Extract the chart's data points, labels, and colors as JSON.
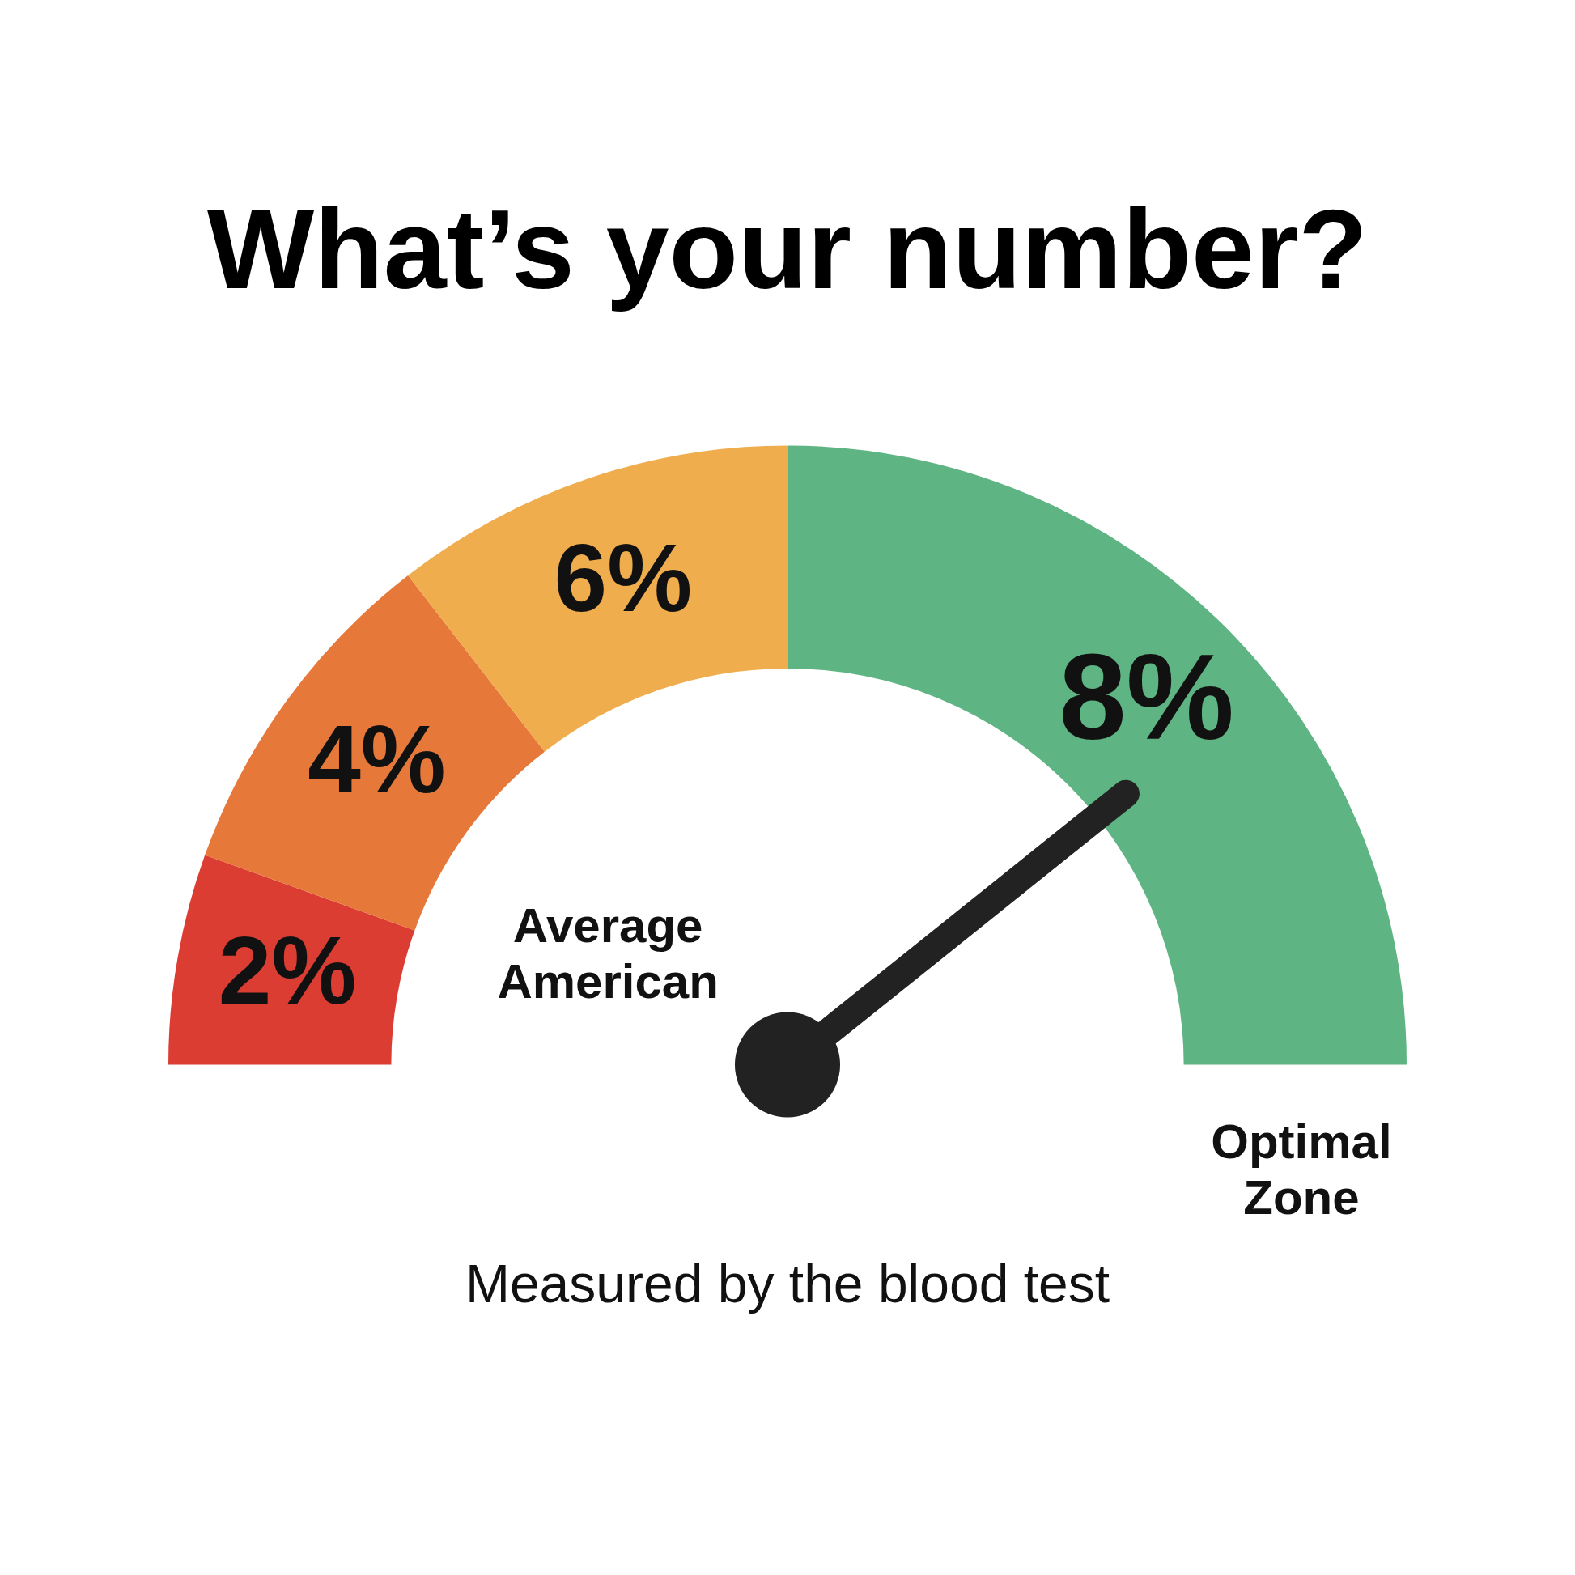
{
  "chart_data": {
    "type": "donut",
    "title": "What’s your number?",
    "categories": [
      "2%",
      "4%",
      "6%",
      "8%"
    ],
    "values": [
      11,
      18,
      21,
      50
    ],
    "colors": [
      "#dc3d33",
      "#e67839",
      "#f0ad4e",
      "#5eb482"
    ],
    "needle": "8%",
    "legend": false,
    "annotations": [
      "Average American",
      "Optimal Zone",
      "Measured by the blood test"
    ]
  }
}
